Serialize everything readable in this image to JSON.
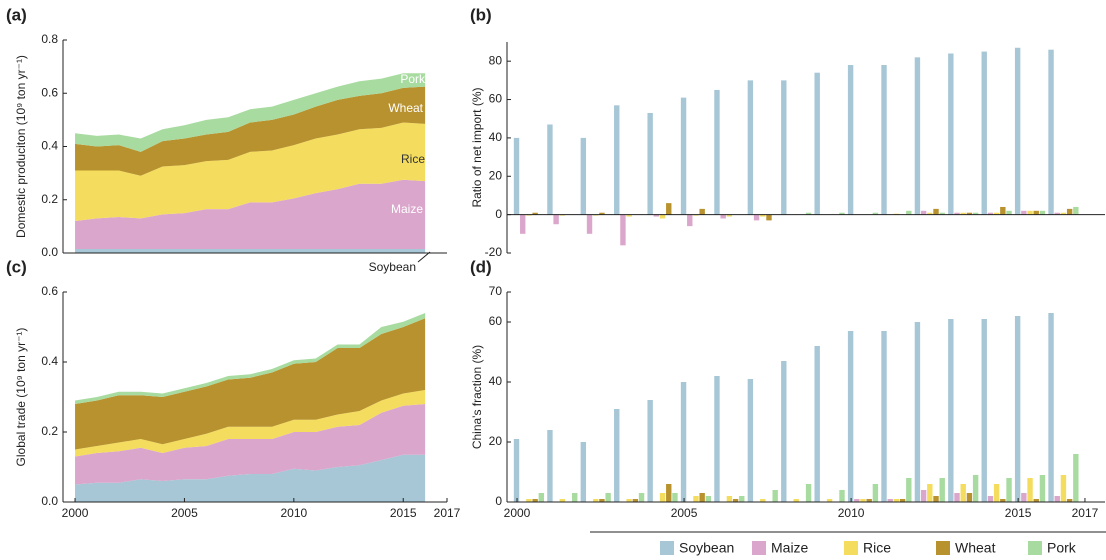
{
  "chart_data": [
    {
      "type": "area",
      "title": "(a)",
      "y_label": "Domestic produciton (10⁹ ton yr⁻¹)",
      "x": [
        2000,
        2001,
        2002,
        2003,
        2004,
        2005,
        2006,
        2007,
        2008,
        2009,
        2010,
        2011,
        2012,
        2013,
        2014,
        2015,
        2016
      ],
      "xlim": [
        1999.45,
        2017
      ],
      "ylim": [
        0,
        0.8
      ],
      "yticks": [
        {
          "value": 0,
          "label": "0.0"
        },
        0.2,
        0.4,
        0.6,
        0.8
      ],
      "series": [
        {
          "name": "Soybean",
          "color": "#a7c7d6",
          "values": [
            0.015,
            0.015,
            0.015,
            0.015,
            0.015,
            0.015,
            0.015,
            0.015,
            0.015,
            0.015,
            0.015,
            0.015,
            0.015,
            0.015,
            0.015,
            0.015,
            0.015
          ]
        },
        {
          "name": "Maize",
          "color": "#dba6cc",
          "values": [
            0.105,
            0.115,
            0.12,
            0.115,
            0.13,
            0.135,
            0.15,
            0.15,
            0.175,
            0.175,
            0.19,
            0.21,
            0.225,
            0.245,
            0.245,
            0.26,
            0.255
          ]
        },
        {
          "name": "Rice",
          "color": "#f4dd5e",
          "values": [
            0.19,
            0.18,
            0.175,
            0.16,
            0.18,
            0.18,
            0.18,
            0.185,
            0.19,
            0.195,
            0.2,
            0.205,
            0.205,
            0.205,
            0.21,
            0.215,
            0.215
          ]
        },
        {
          "name": "Wheat",
          "color": "#b8922e",
          "values": [
            0.1,
            0.09,
            0.095,
            0.09,
            0.095,
            0.1,
            0.1,
            0.105,
            0.11,
            0.115,
            0.115,
            0.12,
            0.13,
            0.125,
            0.13,
            0.13,
            0.14
          ]
        },
        {
          "name": "Pork",
          "color": "#a8dba0",
          "values": [
            0.04,
            0.04,
            0.04,
            0.05,
            0.045,
            0.05,
            0.055,
            0.055,
            0.05,
            0.05,
            0.055,
            0.05,
            0.05,
            0.055,
            0.055,
            0.055,
            0.05
          ]
        }
      ]
    },
    {
      "type": "bar",
      "title": "(b)",
      "y_label": "Ratio of net import (%)",
      "x": [
        2000,
        2001,
        2002,
        2003,
        2004,
        2005,
        2006,
        2007,
        2008,
        2009,
        2010,
        2011,
        2012,
        2013,
        2014,
        2015,
        2016
      ],
      "xlim": [
        1999.7,
        2017.6
      ],
      "ylim": [
        -20,
        90
      ],
      "yticks": [
        -20,
        0,
        20,
        40,
        60,
        80
      ],
      "series": [
        {
          "name": "Soybean",
          "color": "#a7c7d6",
          "values": [
            40,
            47,
            40,
            57,
            53,
            61,
            65,
            70,
            70,
            74,
            78,
            78,
            82,
            84,
            85,
            87,
            86
          ]
        },
        {
          "name": "Maize",
          "color": "#dba6cc",
          "values": [
            -10,
            -5,
            -10,
            -16,
            -1,
            -6,
            -2,
            -3,
            0,
            0,
            0,
            0,
            2,
            1,
            1,
            2,
            1
          ]
        },
        {
          "name": "Rice",
          "color": "#f4dd5e",
          "values": [
            -0.5,
            -0.5,
            -0.5,
            -1,
            -2,
            -0.5,
            -1,
            -1,
            0,
            0,
            0,
            0.5,
            1,
            1,
            1,
            2,
            1
          ]
        },
        {
          "name": "Wheat",
          "color": "#b8922e",
          "values": [
            1,
            0,
            1,
            0,
            6,
            3,
            0,
            -3,
            0,
            0,
            0,
            0,
            3,
            1,
            4,
            2,
            3
          ]
        },
        {
          "name": "Pork",
          "color": "#a8dba0",
          "values": [
            0,
            0,
            0,
            0,
            0,
            0,
            0,
            0,
            1,
            1,
            1,
            2,
            1,
            1,
            2,
            2,
            4
          ]
        }
      ]
    },
    {
      "type": "area",
      "title": "(c)",
      "y_label": "Global trade (10⁹ ton yr⁻¹)",
      "x": [
        2000,
        2001,
        2002,
        2003,
        2004,
        2005,
        2006,
        2007,
        2008,
        2009,
        2010,
        2011,
        2012,
        2013,
        2014,
        2015,
        2016
      ],
      "xlim": [
        1999.45,
        2017
      ],
      "xticks": [
        2000,
        2005,
        2010,
        2015,
        2017
      ],
      "ylim": [
        0,
        0.6
      ],
      "yticks": [
        {
          "value": 0,
          "label": "0.0"
        },
        0.2,
        0.4,
        0.6
      ],
      "series": [
        {
          "name": "Soybean",
          "color": "#a7c7d6",
          "values": [
            0.05,
            0.055,
            0.055,
            0.065,
            0.06,
            0.065,
            0.065,
            0.075,
            0.08,
            0.08,
            0.095,
            0.09,
            0.1,
            0.105,
            0.12,
            0.135,
            0.135
          ]
        },
        {
          "name": "Maize",
          "color": "#dba6cc",
          "values": [
            0.08,
            0.085,
            0.09,
            0.09,
            0.08,
            0.09,
            0.095,
            0.105,
            0.1,
            0.1,
            0.105,
            0.11,
            0.115,
            0.115,
            0.135,
            0.14,
            0.145
          ]
        },
        {
          "name": "Rice",
          "color": "#f4dd5e",
          "values": [
            0.02,
            0.02,
            0.025,
            0.025,
            0.025,
            0.025,
            0.035,
            0.035,
            0.035,
            0.035,
            0.035,
            0.035,
            0.035,
            0.04,
            0.035,
            0.035,
            0.04
          ]
        },
        {
          "name": "Wheat",
          "color": "#b8922e",
          "values": [
            0.13,
            0.13,
            0.135,
            0.125,
            0.135,
            0.135,
            0.135,
            0.135,
            0.14,
            0.155,
            0.16,
            0.165,
            0.19,
            0.18,
            0.19,
            0.19,
            0.205
          ]
        },
        {
          "name": "Pork",
          "color": "#a8dba0",
          "values": [
            0.01,
            0.01,
            0.01,
            0.01,
            0.01,
            0.01,
            0.01,
            0.01,
            0.01,
            0.01,
            0.01,
            0.01,
            0.01,
            0.01,
            0.02,
            0.015,
            0.015
          ]
        }
      ]
    },
    {
      "type": "bar",
      "title": "(d)",
      "y_label": "China's fraction (%)",
      "x": [
        2000,
        2001,
        2002,
        2003,
        2004,
        2005,
        2006,
        2007,
        2008,
        2009,
        2010,
        2011,
        2012,
        2013,
        2014,
        2015,
        2016
      ],
      "xlim": [
        1999.7,
        2017.6
      ],
      "xticks": [
        2000,
        2005,
        2010,
        2015,
        2017
      ],
      "ylim": [
        0,
        70
      ],
      "yticks": [
        0,
        20,
        40,
        60,
        70
      ],
      "series": [
        {
          "name": "Soybean",
          "color": "#a7c7d6",
          "values": [
            21,
            24,
            20,
            31,
            34,
            40,
            42,
            41,
            47,
            52,
            57,
            57,
            60,
            61,
            61,
            62,
            63
          ]
        },
        {
          "name": "Maize",
          "color": "#dba6cc",
          "values": [
            0,
            0,
            0,
            0,
            0,
            0,
            0,
            0,
            0,
            0,
            1,
            1,
            4,
            3,
            2,
            3,
            2
          ]
        },
        {
          "name": "Rice",
          "color": "#f4dd5e",
          "values": [
            1,
            1,
            1,
            1,
            3,
            2,
            2,
            1,
            1,
            1,
            1,
            1,
            6,
            6,
            6,
            8,
            9
          ]
        },
        {
          "name": "Wheat",
          "color": "#b8922e",
          "values": [
            1,
            0,
            1,
            1,
            6,
            3,
            1,
            0,
            0,
            0,
            1,
            1,
            2,
            3,
            1,
            1,
            1
          ]
        },
        {
          "name": "Pork",
          "color": "#a8dba0",
          "values": [
            3,
            3,
            3,
            3,
            3,
            2,
            2,
            4,
            6,
            4,
            6,
            8,
            8,
            9,
            8,
            9,
            16
          ]
        }
      ]
    }
  ]
}
